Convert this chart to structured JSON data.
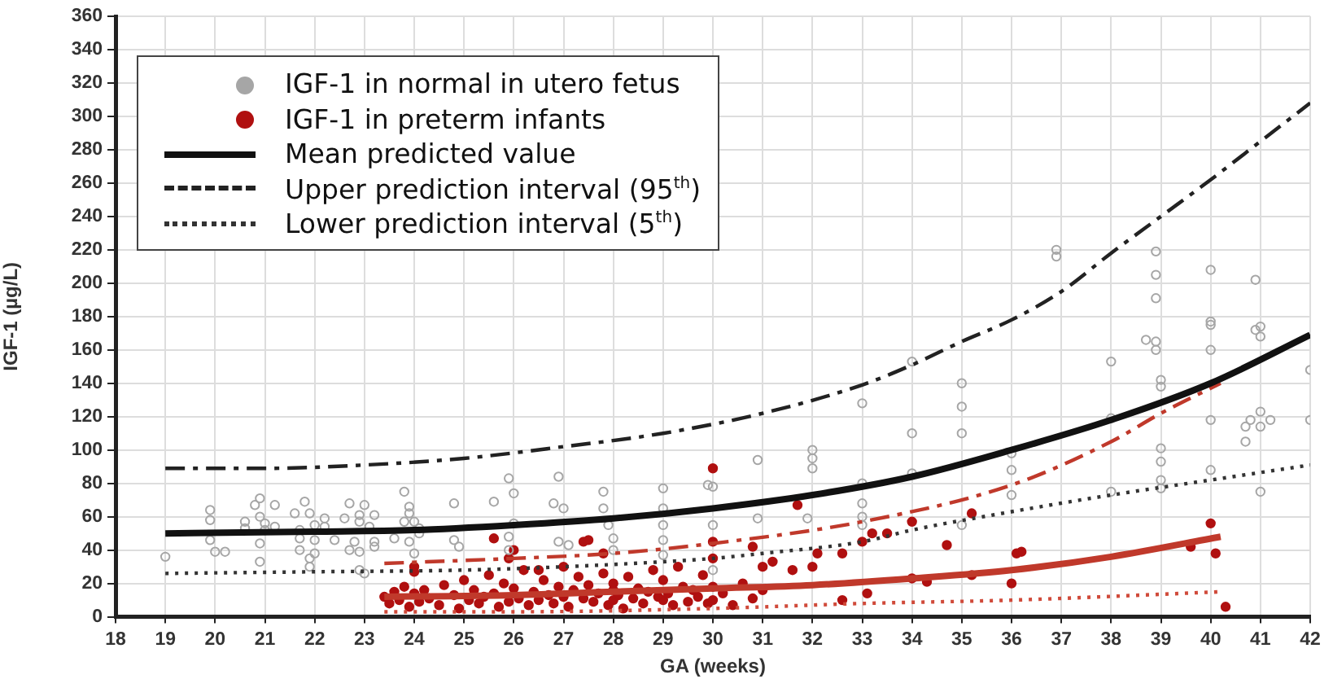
{
  "chart_data": {
    "type": "scatter",
    "xlabel": "GA (weeks)",
    "ylabel": "IGF-1 (µg/L)",
    "xlim": [
      18,
      42
    ],
    "xticks": [
      18,
      19,
      20,
      21,
      22,
      23,
      24,
      25,
      26,
      27,
      28,
      29,
      30,
      31,
      32,
      33,
      34,
      35,
      36,
      37,
      38,
      39,
      40,
      41,
      42
    ],
    "ylim": [
      0,
      360
    ],
    "yticks": [
      0,
      20,
      40,
      60,
      80,
      100,
      120,
      140,
      160,
      180,
      200,
      220,
      240,
      260,
      280,
      300,
      320,
      340,
      360
    ],
    "grid": true,
    "legend": "top left",
    "marker": "circle",
    "series": [
      {
        "name": "IGF-1 in normal in utero fetus",
        "type": "scatter",
        "color": "#a6a6a6",
        "x": [
          19,
          19.9,
          19.9,
          19.9,
          20,
          20.2,
          20.6,
          20.6,
          20.8,
          20.9,
          20.9,
          20.9,
          20.9,
          21,
          21,
          21.2,
          21.2,
          21.6,
          21.7,
          21.7,
          21.7,
          21.8,
          21.9,
          21.9,
          21.9,
          22,
          22,
          22,
          22.2,
          22.2,
          22.4,
          22.6,
          22.7,
          22.7,
          22.8,
          22.9,
          22.9,
          22.9,
          22.9,
          23,
          23,
          23.1,
          23.2,
          23.2,
          23.2,
          23.6,
          23.8,
          23.8,
          23.9,
          23.9,
          23.9,
          24,
          24,
          24.1,
          24.1,
          24.8,
          24.8,
          24.9,
          25.6,
          25.9,
          25.9,
          25.9,
          26,
          26,
          26.8,
          26.9,
          26.9,
          27,
          27.1,
          27.8,
          27.8,
          27.9,
          28,
          28,
          29,
          29,
          29,
          29,
          29,
          29.9,
          30,
          30,
          30,
          30.9,
          30.9,
          32,
          32,
          32,
          31.9,
          33,
          33,
          33,
          33,
          33,
          34,
          34,
          34,
          35,
          35,
          35,
          35,
          36,
          36,
          36,
          36.9,
          36.9,
          38,
          38,
          38,
          38.7,
          38.9,
          38.9,
          38.9,
          38.9,
          38.9,
          39,
          39,
          39,
          39,
          39,
          39,
          40,
          40,
          40,
          40,
          40,
          40,
          40.7,
          40.7,
          40.8,
          40.9,
          40.9,
          41,
          41,
          41,
          41,
          41,
          41.2,
          42,
          42
        ],
        "values": [
          36,
          64,
          58,
          46,
          39,
          39,
          53,
          57,
          67,
          71,
          60,
          44,
          33,
          52,
          56,
          54,
          67,
          62,
          52,
          47,
          40,
          69,
          62,
          30,
          35,
          38,
          46,
          55,
          54,
          59,
          46,
          59,
          40,
          68,
          45,
          28,
          39,
          57,
          61,
          67,
          26,
          54,
          61,
          45,
          42,
          47,
          57,
          75,
          62,
          45,
          66,
          38,
          57,
          53,
          50,
          68,
          46,
          42,
          69,
          83,
          48,
          40,
          56,
          74,
          68,
          84,
          45,
          65,
          43,
          75,
          65,
          55,
          47,
          40,
          77,
          65,
          55,
          46,
          37,
          79,
          78,
          55,
          28,
          94,
          59,
          100,
          95,
          89,
          59,
          128,
          80,
          68,
          60,
          55,
          153,
          110,
          86,
          126,
          140,
          110,
          55,
          98,
          88,
          73,
          220,
          216,
          153,
          119,
          75,
          166,
          219,
          205,
          191,
          165,
          160,
          142,
          138,
          101,
          93,
          82,
          77,
          208,
          177,
          175,
          118,
          88,
          160,
          114,
          105,
          118,
          202,
          172,
          174,
          168,
          123,
          114,
          75,
          118,
          118,
          148
        ]
      },
      {
        "name": "IGF-1 in preterm infants",
        "type": "scatter",
        "color": "#b01010",
        "x": [
          23.4,
          23.5,
          23.6,
          23.7,
          23.8,
          23.9,
          24,
          24,
          24,
          24.1,
          24.2,
          24.3,
          24.5,
          24.6,
          24.8,
          24.9,
          25,
          25.1,
          25.2,
          25.3,
          25.4,
          25.5,
          25.6,
          25.6,
          25.7,
          25.8,
          25.9,
          25.9,
          26,
          26,
          26.1,
          26.2,
          26.3,
          26.4,
          26.5,
          26.5,
          26.6,
          26.7,
          26.8,
          26.9,
          27,
          27,
          27.1,
          27.2,
          27.3,
          27.4,
          27.4,
          27.5,
          27.5,
          27.6,
          27.7,
          27.8,
          27.8,
          27.9,
          28,
          28,
          28,
          28.1,
          28.2,
          28.3,
          28.4,
          28.5,
          28.6,
          28.7,
          28.8,
          28.9,
          29,
          29,
          29.1,
          29.2,
          29.3,
          29.4,
          29.5,
          29.6,
          29.7,
          29.8,
          29.9,
          30,
          30,
          30,
          30,
          30,
          30.2,
          30.4,
          30.6,
          30.8,
          30.8,
          31,
          31,
          31.2,
          31.6,
          31.7,
          32,
          32.1,
          32.6,
          32.6,
          33,
          33.1,
          33.2,
          33.5,
          34,
          34,
          34.3,
          34.7,
          35.2,
          35.2,
          36,
          36.1,
          36.2,
          39.6,
          40,
          40.1,
          40.3
        ],
        "values": [
          12,
          8,
          15,
          10,
          18,
          6,
          30,
          27,
          14,
          9,
          16,
          11,
          7,
          19,
          13,
          5,
          22,
          10,
          16,
          8,
          12,
          25,
          47,
          14,
          6,
          20,
          35,
          9,
          40,
          17,
          11,
          28,
          7,
          15,
          28,
          10,
          22,
          13,
          8,
          18,
          12,
          30,
          6,
          16,
          24,
          45,
          11,
          46,
          19,
          9,
          14,
          26,
          38,
          7,
          16,
          20,
          10,
          13,
          5,
          24,
          11,
          17,
          8,
          15,
          28,
          12,
          10,
          22,
          14,
          7,
          30,
          18,
          9,
          16,
          12,
          25,
          8,
          89,
          45,
          35,
          18,
          10,
          14,
          7,
          20,
          42,
          11,
          30,
          16,
          33,
          28,
          67,
          30,
          38,
          38,
          10,
          45,
          14,
          50,
          50,
          57,
          23,
          21,
          43,
          62,
          25,
          20,
          38,
          39,
          42,
          56,
          38,
          6
        ]
      },
      {
        "name": "Mean predicted value",
        "type": "line",
        "color": "#111111",
        "line_style": "solid",
        "marker": "none",
        "x": [
          19,
          22,
          24,
          26,
          28,
          30,
          32,
          34,
          36,
          38,
          40,
          42
        ],
        "values": [
          50,
          51,
          52,
          55,
          59,
          65,
          73,
          84,
          100,
          118,
          140,
          169
        ]
      },
      {
        "name": "Upper prediction interval (95$^{th}$)",
        "type": "line",
        "color": "#222222",
        "line_style": "dashed",
        "marker": "none",
        "x": [
          19,
          21,
          23,
          25,
          27,
          29,
          31,
          33,
          34,
          35,
          36,
          37,
          38,
          39,
          40,
          41,
          42
        ],
        "values": [
          89,
          89,
          91,
          95,
          102,
          110,
          122,
          139,
          151,
          165,
          178,
          195,
          218,
          240,
          262,
          285,
          308
        ]
      },
      {
        "name": "Lower prediction interval (5$^{th}$)",
        "type": "line",
        "color": "#333333",
        "line_style": "dotted",
        "marker": "none",
        "x": [
          19,
          22,
          25,
          27,
          29,
          30,
          31,
          33,
          34,
          36,
          38,
          40,
          42
        ],
        "values": [
          26,
          27,
          28,
          30,
          33,
          35,
          38,
          45,
          52,
          63,
          73,
          82,
          91
        ]
      },
      {
        "type": "line",
        "color": "#c0392b",
        "line_style": "solid",
        "marker": "none",
        "x": [
          23.4,
          26,
          28,
          30,
          32,
          34,
          36,
          38,
          40.2
        ],
        "values": [
          12,
          13,
          15,
          17,
          19,
          23,
          28,
          36,
          48
        ]
      },
      {
        "type": "line",
        "color": "#c0392b",
        "line_style": "dashed",
        "marker": "none",
        "x": [
          23.4,
          26,
          28,
          30,
          33,
          36,
          38,
          39,
          40.2
        ],
        "values": [
          32,
          35,
          38,
          44,
          57,
          79,
          105,
          122,
          140
        ]
      },
      {
        "type": "line",
        "color": "#d04a3a",
        "line_style": "dotted",
        "marker": "none",
        "x": [
          23.4,
          26,
          30,
          33,
          36,
          40.2
        ],
        "values": [
          3,
          3,
          5,
          8,
          10,
          15
        ]
      }
    ]
  }
}
